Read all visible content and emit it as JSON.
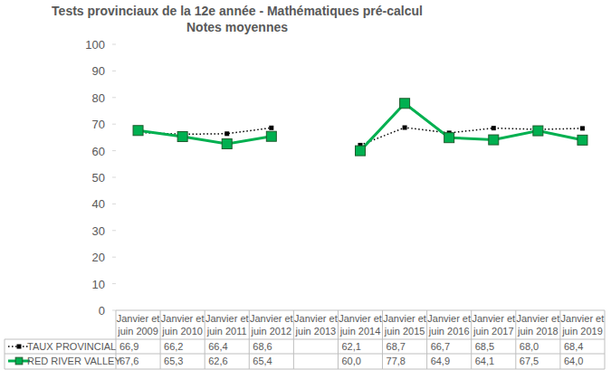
{
  "chart_data": {
    "type": "line",
    "title": "Tests provinciaux de la 12e année - Mathématiques pré-calcul",
    "subtitle": "Notes moyennes",
    "categories": [
      "Janvier et juin 2009",
      "Janvier et juin 2010",
      "Janvier et juin 2011",
      "Janvier et juin 2012",
      "Janvier et juin 2013",
      "Janvier et juin 2014",
      "Janvier et juin 2015",
      "Janvier et juin 2016",
      "Janvier et juin 2017",
      "Janvier et juin 2018",
      "Janvier et juin 2019"
    ],
    "series": [
      {
        "name": "TAUX PROVINCIAL",
        "color": "#000000",
        "marker": "square",
        "line_style": "dotted",
        "values": [
          66.9,
          66.2,
          66.4,
          68.6,
          null,
          62.1,
          68.7,
          66.7,
          68.5,
          68.0,
          68.4
        ],
        "value_labels": [
          "66,9",
          "66,2",
          "66,4",
          "68,6",
          null,
          "62,1",
          "68,7",
          "66,7",
          "68,5",
          "68,0",
          "68,4"
        ]
      },
      {
        "name": "RED RIVER VALLEY",
        "color": "#00b050",
        "marker": "square",
        "line_style": "solid",
        "values": [
          67.6,
          65.3,
          62.6,
          65.4,
          null,
          60.0,
          77.8,
          64.9,
          64.1,
          67.5,
          64.0
        ],
        "value_labels": [
          "67,6",
          "65,3",
          "62,6",
          "65,4",
          null,
          "60,0",
          "77,8",
          "64,9",
          "64,1",
          "67,5",
          "64,0"
        ]
      }
    ],
    "ylim": [
      0,
      100
    ],
    "yticks": [
      0,
      10,
      20,
      30,
      40,
      50,
      60,
      70,
      80,
      90,
      100
    ],
    "grid": false
  }
}
